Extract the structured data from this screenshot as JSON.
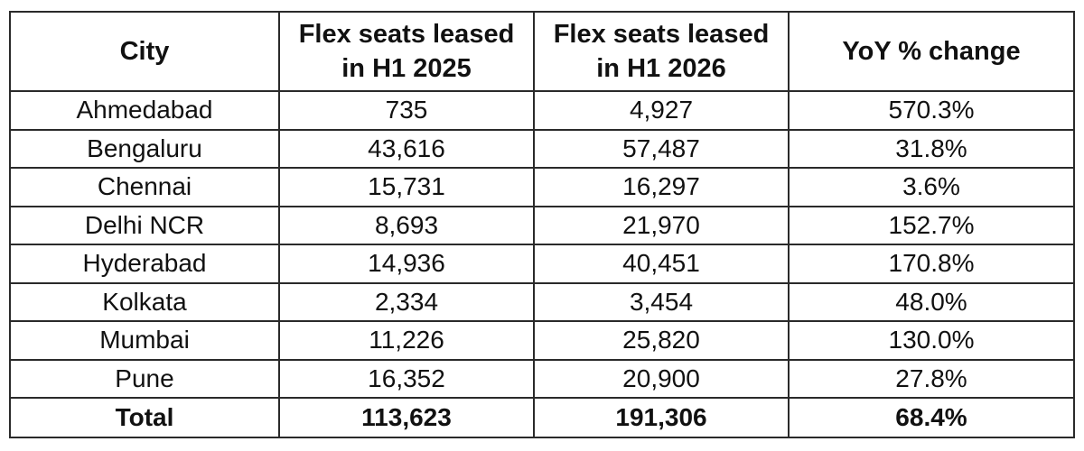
{
  "table": {
    "headers": {
      "city": "City",
      "h1_2025": "Flex seats leased\nin H1 2025",
      "h1_2026": "Flex seats leased\nin H1 2026",
      "yoy": "YoY % change"
    },
    "rows": [
      {
        "city": "Ahmedabad",
        "h1_2025": "735",
        "h1_2026": "4,927",
        "yoy": "570.3%"
      },
      {
        "city": "Bengaluru",
        "h1_2025": "43,616",
        "h1_2026": "57,487",
        "yoy": "31.8%"
      },
      {
        "city": "Chennai",
        "h1_2025": "15,731",
        "h1_2026": "16,297",
        "yoy": "3.6%"
      },
      {
        "city": "Delhi NCR",
        "h1_2025": "8,693",
        "h1_2026": "21,970",
        "yoy": "152.7%"
      },
      {
        "city": "Hyderabad",
        "h1_2025": "14,936",
        "h1_2026": "40,451",
        "yoy": "170.8%"
      },
      {
        "city": "Kolkata",
        "h1_2025": "2,334",
        "h1_2026": "3,454",
        "yoy": "48.0%"
      },
      {
        "city": "Mumbai",
        "h1_2025": "11,226",
        "h1_2026": "25,820",
        "yoy": "130.0%"
      },
      {
        "city": "Pune",
        "h1_2025": "16,352",
        "h1_2026": "20,900",
        "yoy": "27.8%"
      }
    ],
    "total": {
      "city": "Total",
      "h1_2025": "113,623",
      "h1_2026": "191,306",
      "yoy": "68.4%"
    }
  }
}
